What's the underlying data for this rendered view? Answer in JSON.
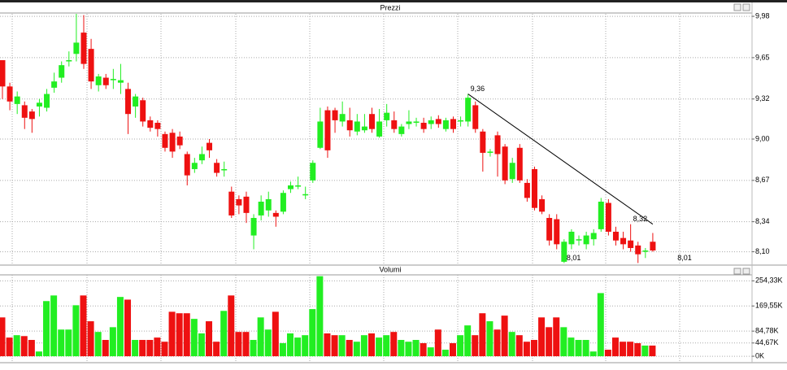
{
  "chart_data": [
    {
      "type": "candlestick",
      "title": "Prezzi",
      "grid": true,
      "colors": {
        "up": "#22ee22",
        "down": "#ee1111"
      },
      "open": [
        9.63,
        9.42,
        9.28,
        9.27,
        9.22,
        9.26,
        9.25,
        9.41,
        9.49,
        9.62,
        9.68,
        9.85,
        9.72,
        9.43,
        9.49,
        9.47,
        9.45,
        9.4,
        9.26,
        9.31,
        9.15,
        9.13,
        9.04,
        9.05,
        9.02,
        8.88,
        8.76,
        8.83,
        8.97,
        8.81,
        8.75,
        8.58,
        8.52,
        8.54,
        8.23,
        8.39,
        8.43,
        8.41,
        8.42,
        8.6,
        8.62,
        8.55,
        8.67,
        8.93,
        9.23,
        9.23,
        9.14,
        9.15,
        9.06,
        9.07,
        9.2,
        9.02,
        9.15,
        9.15,
        9.04,
        9.12,
        9.13,
        9.13,
        9.12,
        9.16,
        9.08,
        9.16,
        9.14,
        9.14,
        9.27,
        9.06,
        8.89,
        9.03,
        8.94,
        8.68,
        8.93,
        8.65,
        8.76,
        8.52,
        8.37,
        8.36,
        8.02,
        8.16,
        8.19,
        8.16,
        8.2,
        8.28,
        8.49,
        8.26,
        8.21,
        8.19,
        8.15,
        8.1,
        8.18
      ],
      "high": [
        9.63,
        9.45,
        9.38,
        9.3,
        9.24,
        9.32,
        9.4,
        9.53,
        9.62,
        9.7,
        10.0,
        9.99,
        9.8,
        9.52,
        9.52,
        9.56,
        9.6,
        9.45,
        9.36,
        9.33,
        9.18,
        9.15,
        9.06,
        9.08,
        9.06,
        8.9,
        8.85,
        8.94,
        9.0,
        8.84,
        8.82,
        8.62,
        8.55,
        8.58,
        8.4,
        8.55,
        8.58,
        8.43,
        8.59,
        8.66,
        8.7,
        8.62,
        8.83,
        9.25,
        9.26,
        9.25,
        9.3,
        9.25,
        9.2,
        9.2,
        9.25,
        9.24,
        9.28,
        9.22,
        9.12,
        9.23,
        9.17,
        9.17,
        9.18,
        9.19,
        9.17,
        9.18,
        9.18,
        9.36,
        9.3,
        9.08,
        8.92,
        9.06,
        8.96,
        8.85,
        8.96,
        8.68,
        8.78,
        8.55,
        8.4,
        8.4,
        8.2,
        8.28,
        8.23,
        8.26,
        8.28,
        8.53,
        8.52,
        8.3,
        8.26,
        8.32,
        8.18,
        8.13,
        8.25
      ],
      "low": [
        9.32,
        9.23,
        9.2,
        9.08,
        9.05,
        9.18,
        9.22,
        9.37,
        9.45,
        9.58,
        9.62,
        9.56,
        9.4,
        9.38,
        9.4,
        9.4,
        9.36,
        9.04,
        9.17,
        9.1,
        9.06,
        9.02,
        8.9,
        8.85,
        8.92,
        8.63,
        8.73,
        8.8,
        8.85,
        8.7,
        8.7,
        8.37,
        8.4,
        8.33,
        8.12,
        8.35,
        8.38,
        8.3,
        8.4,
        8.57,
        8.6,
        8.52,
        8.65,
        8.92,
        8.85,
        9.05,
        9.1,
        9.02,
        9.03,
        9.05,
        9.05,
        9.01,
        9.1,
        9.05,
        9.02,
        9.08,
        9.1,
        9.05,
        9.08,
        9.09,
        9.06,
        9.05,
        9.1,
        9.1,
        9.05,
        8.74,
        8.86,
        8.7,
        8.64,
        8.65,
        8.65,
        8.5,
        8.43,
        8.4,
        8.15,
        8.12,
        8.01,
        8.12,
        8.15,
        8.12,
        8.15,
        8.26,
        8.23,
        8.15,
        8.12,
        8.1,
        8.01,
        8.05,
        8.1
      ],
      "close": [
        9.42,
        9.3,
        9.34,
        9.17,
        9.16,
        9.29,
        9.36,
        9.46,
        9.59,
        9.63,
        9.77,
        9.6,
        9.46,
        9.5,
        9.43,
        9.48,
        9.47,
        9.2,
        9.34,
        9.14,
        9.09,
        9.08,
        8.93,
        8.9,
        8.95,
        8.71,
        8.81,
        8.88,
        8.91,
        8.73,
        8.76,
        8.39,
        8.47,
        8.41,
        8.37,
        8.5,
        8.52,
        8.38,
        8.57,
        8.63,
        8.63,
        8.56,
        8.81,
        9.14,
        8.91,
        9.15,
        9.2,
        9.07,
        9.14,
        9.1,
        9.08,
        9.14,
        9.21,
        9.08,
        9.1,
        9.14,
        9.14,
        9.08,
        9.15,
        9.12,
        9.15,
        9.08,
        9.15,
        9.33,
        9.08,
        8.89,
        8.9,
        8.88,
        8.67,
        8.81,
        8.67,
        8.53,
        8.45,
        8.42,
        8.19,
        8.16,
        8.18,
        8.26,
        8.2,
        8.23,
        8.25,
        8.5,
        8.26,
        8.19,
        8.16,
        8.13,
        8.08,
        8.11,
        8.11
      ],
      "ylim": [
        8.0,
        10.0
      ],
      "yticks": [
        {
          "value": 9.98,
          "label": "9,98"
        },
        {
          "value": 9.65,
          "label": "9,65"
        },
        {
          "value": 9.32,
          "label": "9,32"
        },
        {
          "value": 9.0,
          "label": "9,00"
        },
        {
          "value": 8.67,
          "label": "8,67"
        },
        {
          "value": 8.34,
          "label": "8,34"
        },
        {
          "value": 8.1,
          "label": "8,10"
        }
      ],
      "annotations": [
        {
          "text": "9,36",
          "x": 63,
          "value": 9.36
        },
        {
          "text": "8,01",
          "x": 76,
          "value": 8.01
        },
        {
          "text": "8,32",
          "x": 85,
          "value": 8.32
        },
        {
          "text": "8,01",
          "x": 91,
          "value": 8.01
        }
      ],
      "trendline": {
        "x": [
          63,
          88
        ],
        "y": [
          9.36,
          8.32
        ],
        "color": "#000000"
      }
    },
    {
      "type": "bar",
      "title": "Volumi",
      "grid": true,
      "values": [
        131000,
        63000,
        71000,
        68000,
        55000,
        16000,
        186000,
        205000,
        90000,
        90000,
        172000,
        205000,
        118000,
        82000,
        55000,
        98000,
        200000,
        191000,
        55000,
        55000,
        55000,
        63000,
        49000,
        150000,
        145000,
        145000,
        126000,
        77000,
        118000,
        49000,
        153000,
        205000,
        82000,
        82000,
        55000,
        131000,
        90000,
        150000,
        44000,
        77000,
        63000,
        71000,
        159000,
        270000,
        77000,
        71000,
        71000,
        55000,
        49000,
        71000,
        77000,
        63000,
        71000,
        82000,
        55000,
        49000,
        55000,
        44000,
        30000,
        90000,
        22000,
        44000,
        71000,
        104000,
        71000,
        145000,
        118000,
        90000,
        137000,
        82000,
        71000,
        49000,
        55000,
        131000,
        98000,
        131000,
        98000,
        63000,
        55000,
        55000,
        16000,
        213000,
        22000,
        63000,
        49000,
        49000,
        44000,
        36000,
        36000
      ],
      "ylim": [
        -19000,
        274500
      ],
      "yticks": [
        {
          "value": 254330,
          "label": "254,33K"
        },
        {
          "value": 169550,
          "label": "169,55K"
        },
        {
          "value": 84780,
          "label": "84,78K"
        },
        {
          "value": 44670,
          "label": "44,67K"
        },
        {
          "value": 0,
          "label": "0K"
        }
      ]
    }
  ]
}
